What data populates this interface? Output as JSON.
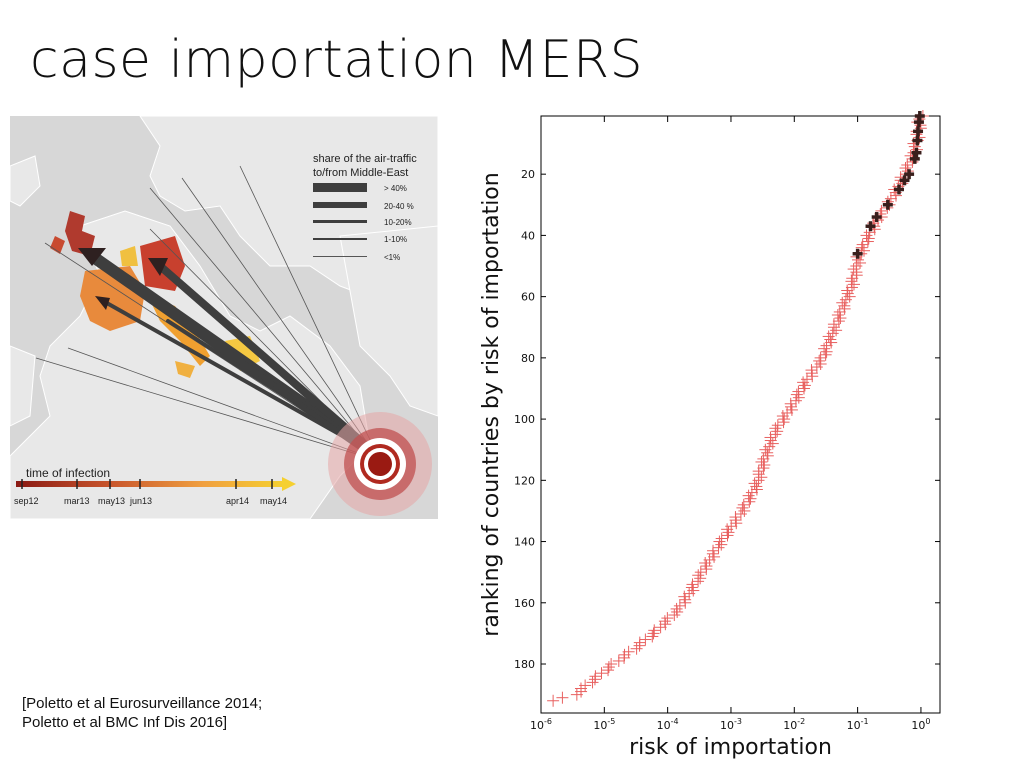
{
  "slide": {
    "title": "case importation MERS",
    "citation_line1": "[Poletto et al Eurosurveillance 2014;",
    "citation_line2": "Poletto et al BMC Inf Dis 2016]"
  },
  "map": {
    "legend_title_line1": "share of the air-traffic",
    "legend_title_line2": "to/from Middle-East",
    "legend_items": [
      "> 40%",
      "20-40 %",
      "10-20%",
      "1-10%",
      "<1%"
    ],
    "timeline_title": "time of infection",
    "timeline_ticks": [
      "sep12",
      "mar13",
      "may13",
      "jun13",
      "apr14",
      "may14"
    ],
    "colors": {
      "sea": "#d6d6d6",
      "land": "#e7e7e7",
      "arrow": "#3e3e3e",
      "source": "#9a1a12"
    }
  },
  "chart_data": {
    "type": "scatter",
    "xlabel": "risk of importation",
    "ylabel": "ranking of countries by risk of importation",
    "x_scale": "log",
    "xlim": [
      1e-06,
      2
    ],
    "ylim": [
      196,
      1
    ],
    "y_inverted": true,
    "xticks": [
      "10-6",
      "10-5",
      "10-4",
      "10-3",
      "10-2",
      "10-1",
      "100"
    ],
    "yticks": [
      20,
      40,
      60,
      80,
      100,
      120,
      140,
      160,
      180
    ],
    "marker": "+",
    "colors": {
      "dark": "#3a1f1c",
      "light": "#e8605f"
    },
    "curve_points": [
      [
        1.6e-06,
        192
      ],
      [
        3.5e-06,
        190
      ],
      [
        6e-06,
        186
      ],
      [
        1.2e-05,
        181
      ],
      [
        3e-05,
        175
      ],
      [
        6e-05,
        170
      ],
      [
        0.00015,
        162
      ],
      [
        0.00025,
        155
      ],
      [
        0.0004,
        148
      ],
      [
        0.0007,
        140
      ],
      [
        0.0015,
        130
      ],
      [
        0.0025,
        122
      ],
      [
        0.0035,
        112
      ],
      [
        0.005,
        104
      ],
      [
        0.009,
        96
      ],
      [
        0.015,
        88
      ],
      [
        0.028,
        80
      ],
      [
        0.04,
        72
      ],
      [
        0.06,
        63
      ],
      [
        0.085,
        55
      ],
      [
        0.105,
        47
      ],
      [
        0.15,
        40
      ],
      [
        0.22,
        34
      ],
      [
        0.35,
        28
      ],
      [
        0.55,
        20
      ],
      [
        0.75,
        14
      ],
      [
        0.9,
        7
      ],
      [
        0.98,
        1
      ]
    ],
    "highlighted": [
      [
        0.1,
        46
      ],
      [
        0.16,
        37
      ],
      [
        0.2,
        34
      ],
      [
        0.3,
        30
      ],
      [
        0.45,
        25
      ],
      [
        0.55,
        22
      ],
      [
        0.65,
        20
      ],
      [
        0.8,
        15
      ],
      [
        0.85,
        13
      ],
      [
        0.88,
        9
      ],
      [
        0.9,
        6
      ],
      [
        0.93,
        3
      ],
      [
        0.96,
        1
      ]
    ]
  }
}
